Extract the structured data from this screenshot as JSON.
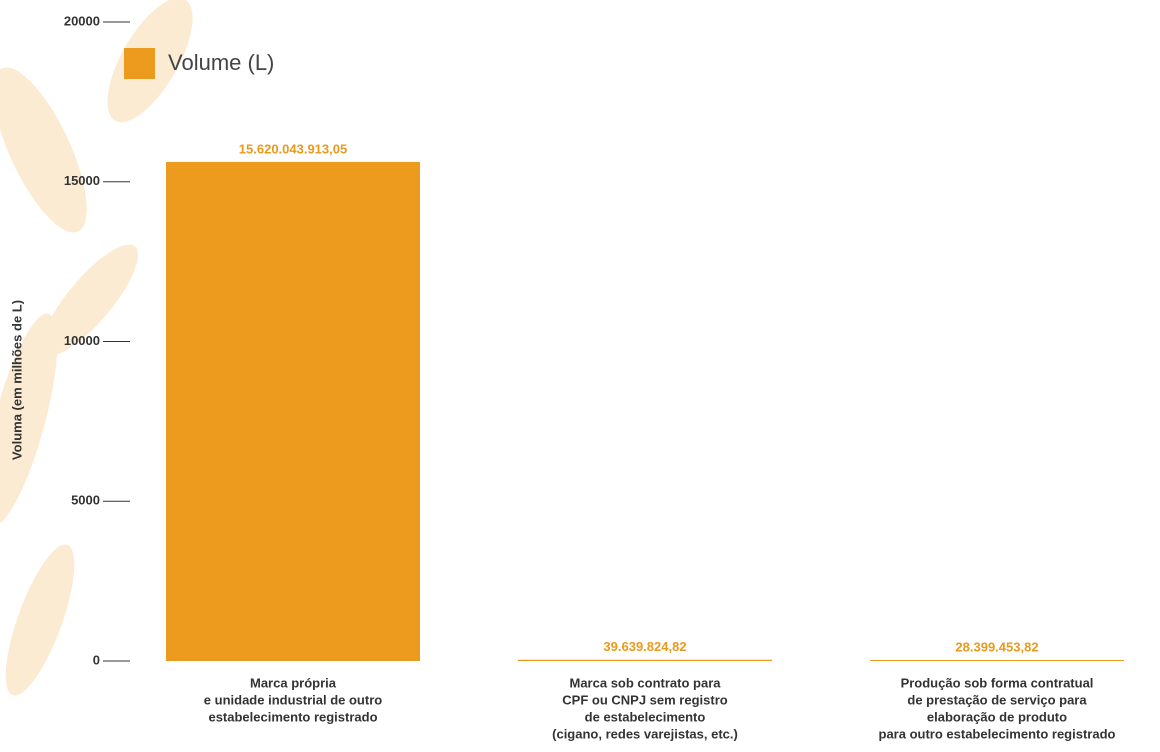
{
  "chart_data": {
    "type": "bar",
    "y_label": "Voluma (em milhões de L)",
    "legend": "Volume (L)",
    "color": "#ec9b1f",
    "categories": [
      [
        "Marca própria",
        "e unidade industrial de outro",
        "estabelecimento registrado"
      ],
      [
        "Marca sob contrato para",
        "CPF ou CNPJ sem registro",
        "de estabelecimento",
        "(cigano, redes varejistas, etc.)"
      ],
      [
        "Produção sob forma contratual",
        "de prestação de serviço para",
        "elaboração de produto",
        "para outro estabelecimento registrado"
      ]
    ],
    "values": [
      15620.04391305,
      39.63982482,
      28.39945382
    ],
    "value_labels": [
      "15.620.043.913,05",
      "39.639.824,82",
      "28.399.453,82"
    ],
    "ylim": [
      0,
      20000
    ],
    "yticks": [
      0,
      5000,
      10000,
      15000,
      20000
    ]
  }
}
